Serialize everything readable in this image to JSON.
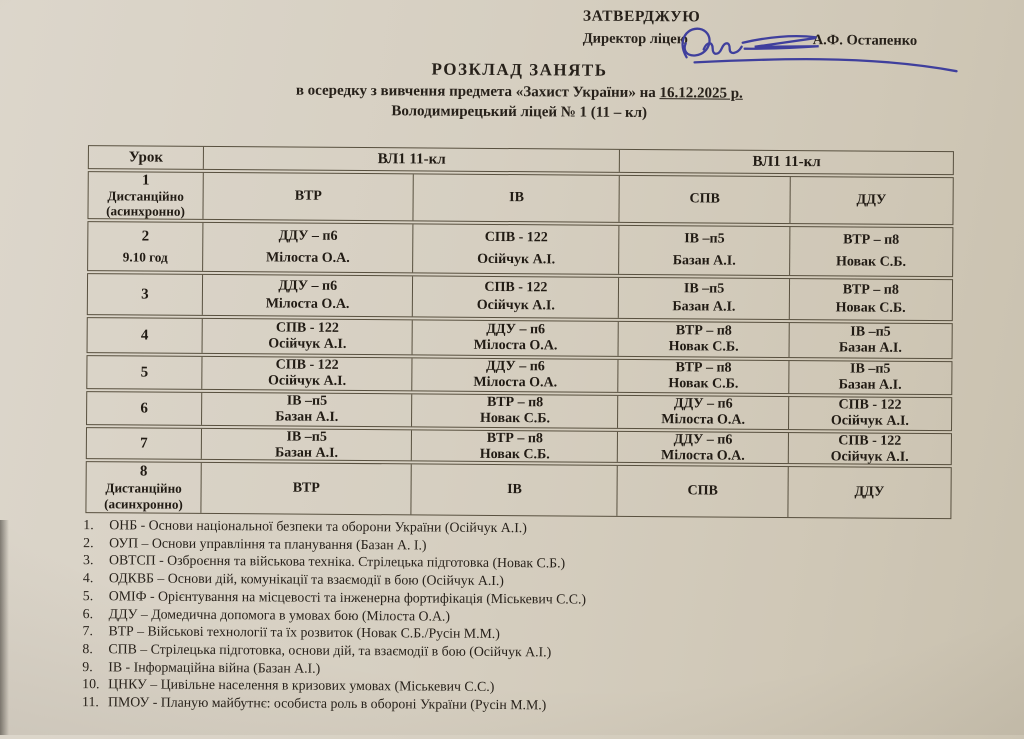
{
  "approval": {
    "stamp": "ЗАТВЕРДЖУЮ",
    "director_label": "Директор ліцею",
    "director_name": "А.Ф. Остапенко",
    "signature_color": "#3f3f9d"
  },
  "title": {
    "line1": "РОЗКЛАД  ЗАНЯТЬ",
    "line2_prefix": "в осередку з вивчення предмета «Захист України» на ",
    "line2_date": "16.12.2025 р.",
    "line3": "Володимирецький ліцей № 1  (11 – кл)"
  },
  "table": {
    "lesson_header": "Урок",
    "group_headers": [
      "ВЛ1 11-кл",
      "ВЛ1 11-кл"
    ],
    "rows": [
      {
        "lesson": [
          "1",
          "Дистанційно",
          "(асинхронно)"
        ],
        "cells": [
          [
            "ВТР"
          ],
          [
            "ІВ"
          ],
          [
            "СПВ"
          ],
          [
            "ДДУ"
          ]
        ]
      },
      {
        "lesson": [
          "2",
          "9.10 год"
        ],
        "cells": [
          [
            "ДДУ – п6",
            "Мілоста О.А."
          ],
          [
            "СПВ - 122",
            "Осійчук А.І."
          ],
          [
            "ІВ –п5",
            "Базан А.І."
          ],
          [
            "ВТР – п8",
            "Новак С.Б."
          ]
        ]
      },
      {
        "lesson": [
          "3"
        ],
        "cells": [
          [
            "ДДУ – п6",
            "Мілоста О.А."
          ],
          [
            "СПВ - 122",
            "Осійчук А.І."
          ],
          [
            "ІВ –п5",
            "Базан А.І."
          ],
          [
            "ВТР – п8",
            "Новак С.Б."
          ]
        ]
      },
      {
        "lesson": [
          "4"
        ],
        "cells": [
          [
            "СПВ - 122",
            "Осійчук А.І."
          ],
          [
            "ДДУ – п6",
            "Мілоста О.А."
          ],
          [
            "ВТР – п8",
            "Новак С.Б."
          ],
          [
            "ІВ –п5",
            "Базан А.І."
          ]
        ]
      },
      {
        "lesson": [
          "5"
        ],
        "cells": [
          [
            "СПВ - 122",
            "Осійчук А.І."
          ],
          [
            "ДДУ – п6",
            "Мілоста О.А."
          ],
          [
            "ВТР – п8",
            "Новак С.Б."
          ],
          [
            "ІВ –п5",
            "Базан А.І."
          ]
        ]
      },
      {
        "lesson": [
          "6"
        ],
        "cells": [
          [
            "ІВ –п5",
            "Базан А.І."
          ],
          [
            "ВТР – п8",
            "Новак С.Б."
          ],
          [
            "ДДУ – п6",
            "Мілоста О.А."
          ],
          [
            "СПВ - 122",
            "Осійчук А.І."
          ]
        ]
      },
      {
        "lesson": [
          "7"
        ],
        "cells": [
          [
            "ІВ –п5",
            "Базан А.І."
          ],
          [
            "ВТР – п8",
            "Новак С.Б."
          ],
          [
            "ДДУ – п6",
            "Мілоста О.А."
          ],
          [
            "СПВ - 122",
            "Осійчук А.І."
          ]
        ]
      },
      {
        "lesson": [
          "8",
          "Дистанційно",
          "(асинхронно)"
        ],
        "cells": [
          [
            "ВТР"
          ],
          [
            "ІВ"
          ],
          [
            "СПВ"
          ],
          [
            "ДДУ"
          ]
        ]
      }
    ]
  },
  "legend": [
    {
      "num": "1.",
      "text": "ОНБ - Основи національної безпеки та оборони України (Осійчук А.І.)"
    },
    {
      "num": "2.",
      "text": "ОУП – Основи управління та планування (Базан А. І.)"
    },
    {
      "num": "3.",
      "text": "ОВТСП - Озброєння та військова техніка. Стрілецька підготовка (Новак С.Б.)"
    },
    {
      "num": "4.",
      "text": "ОДКВБ – Основи дій, комунікації та взаємодії в бою (Осійчук А.І.)"
    },
    {
      "num": "5.",
      "text": "ОМІФ - Орієнтування на місцевості та інженерна фортифікація (Міськевич С.С.)"
    },
    {
      "num": "6.",
      "text": "ДДУ – Домедична допомога в умовах бою (Мілоста О.А.)"
    },
    {
      "num": "7.",
      "text": "ВТР – Військові технології та їх розвиток (Новак С.Б./Русін М.М.)"
    },
    {
      "num": "8.",
      "text": "СПВ – Стрілецька підготовка, основи дій, та взаємодії в бою (Осійчук А.І.)"
    },
    {
      "num": "9.",
      "text": "ІВ - Інформаційна війна (Базан А.І.)"
    },
    {
      "num": "10.",
      "text": "ЦНКУ – Цивільне населення в кризових умовах (Міськевич С.С.)"
    },
    {
      "num": "11.",
      "text": "ПМОУ - Планую майбутнє: особиста роль в обороні України (Русін М.М.)"
    }
  ]
}
